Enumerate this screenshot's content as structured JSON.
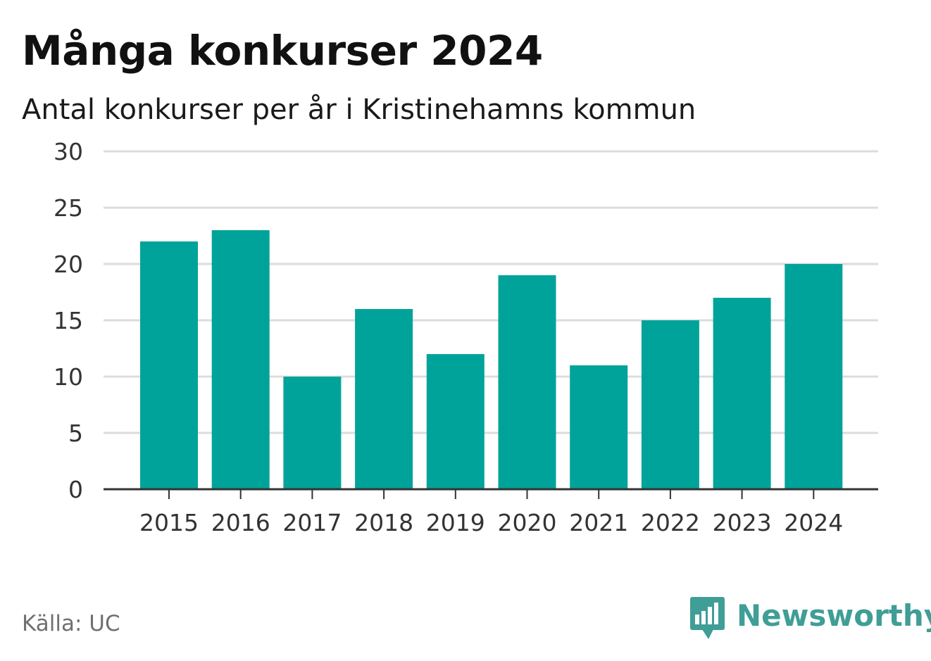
{
  "header": {
    "title": "Många konkurser 2024",
    "subtitle": "Antal konkurser per år i Kristinehamns kommun"
  },
  "footer": {
    "source": "Källa: UC",
    "brand": "Newsworthy",
    "brand_icon": "newsworthy-logo-icon"
  },
  "colors": {
    "bar": "#00a39a",
    "grid": "#dcdcdc",
    "axis": "#333333",
    "brand": "#3f9e96"
  },
  "chart_data": {
    "type": "bar",
    "categories": [
      "2015",
      "2016",
      "2017",
      "2018",
      "2019",
      "2020",
      "2021",
      "2022",
      "2023",
      "2024"
    ],
    "values": [
      22,
      23,
      10,
      16,
      12,
      19,
      11,
      15,
      17,
      20
    ],
    "ylim": [
      0,
      30
    ],
    "yticks": [
      0,
      5,
      10,
      15,
      20,
      25,
      30
    ],
    "grid": true,
    "legend": "none"
  }
}
